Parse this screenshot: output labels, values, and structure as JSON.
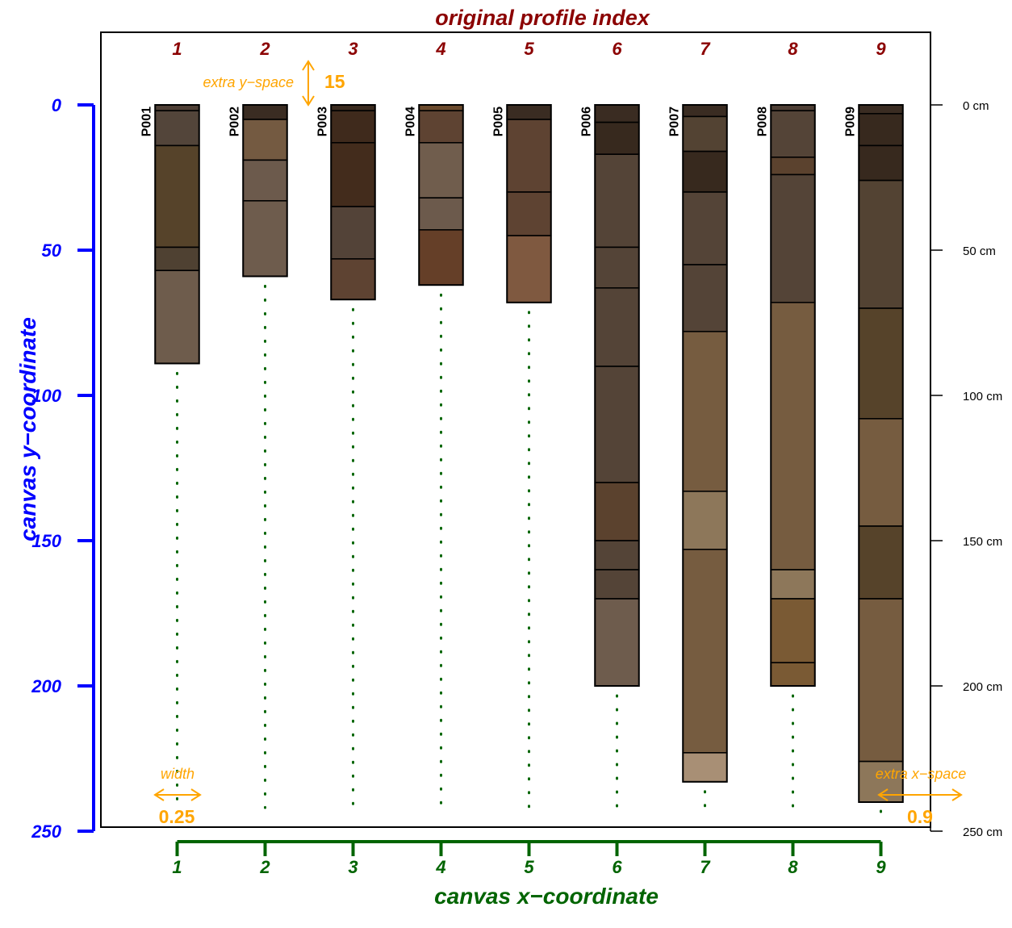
{
  "chart_data": {
    "type": "soil-profile-sketch",
    "title": "original profile index",
    "xlabel": "canvas x−coordinate",
    "ylabel": "canvas y−coordinate",
    "xlim": [
      0.125,
      9.95
    ],
    "ylim": [
      250,
      -25
    ],
    "x_ticks": [
      "1",
      "2",
      "3",
      "4",
      "5",
      "6",
      "7",
      "8",
      "9"
    ],
    "y_ticks": [
      "0",
      "50",
      "100",
      "150",
      "200",
      "250"
    ],
    "depth_axis_ticks": [
      "0 cm",
      "50 cm",
      "100 cm",
      "150 cm",
      "200 cm",
      "250 cm"
    ],
    "depth_axis_values": [
      0,
      50,
      100,
      150,
      200,
      250
    ],
    "index_labels": [
      "1",
      "2",
      "3",
      "4",
      "5",
      "6",
      "7",
      "8",
      "9"
    ],
    "annotations": {
      "y_space_label": "extra y−space",
      "y_space_value": "15",
      "width_label": "width",
      "width_value": "0.25",
      "x_space_label": "extra x−space",
      "x_space_value": "0.9"
    },
    "profile_width": 0.25,
    "extra_y_space": 15,
    "extra_x_space": 0.9,
    "guide_bottom_depth": 240,
    "colors": {
      "title": "#8b0000",
      "y_axis": "#0000ff",
      "x_axis": "#006400",
      "annotation": "#ffa500",
      "guide": "#006400"
    },
    "profiles": [
      {
        "id": "P001",
        "x": 1,
        "horizons": [
          {
            "top": 0,
            "bottom": 2,
            "color": "#4e3f35"
          },
          {
            "top": 2,
            "bottom": 14,
            "color": "#53453a"
          },
          {
            "top": 14,
            "bottom": 49,
            "color": "#56432a"
          },
          {
            "top": 49,
            "bottom": 57,
            "color": "#4f4132"
          },
          {
            "top": 57,
            "bottom": 89,
            "color": "#6e5c4c"
          }
        ]
      },
      {
        "id": "P002",
        "x": 2,
        "horizons": [
          {
            "top": 0,
            "bottom": 5,
            "color": "#3a2c22"
          },
          {
            "top": 5,
            "bottom": 19,
            "color": "#745a41"
          },
          {
            "top": 19,
            "bottom": 33,
            "color": "#6c5a4c"
          },
          {
            "top": 33,
            "bottom": 59,
            "color": "#6e5c4d"
          }
        ]
      },
      {
        "id": "P003",
        "x": 3,
        "horizons": [
          {
            "top": 0,
            "bottom": 2,
            "color": "#3a2a1e"
          },
          {
            "top": 2,
            "bottom": 13,
            "color": "#3f2a1c"
          },
          {
            "top": 13,
            "bottom": 35,
            "color": "#432c1c"
          },
          {
            "top": 35,
            "bottom": 53,
            "color": "#534338"
          },
          {
            "top": 53,
            "bottom": 67,
            "color": "#5e4332"
          }
        ]
      },
      {
        "id": "P004",
        "x": 4,
        "horizons": [
          {
            "top": 0,
            "bottom": 2,
            "color": "#6b4a2d"
          },
          {
            "top": 2,
            "bottom": 13,
            "color": "#5e4332"
          },
          {
            "top": 13,
            "bottom": 32,
            "color": "#705d4d"
          },
          {
            "top": 32,
            "bottom": 43,
            "color": "#6c5a4c"
          },
          {
            "top": 43,
            "bottom": 62,
            "color": "#653f28"
          }
        ]
      },
      {
        "id": "P005",
        "x": 5,
        "horizons": [
          {
            "top": 0,
            "bottom": 5,
            "color": "#3a2c22"
          },
          {
            "top": 5,
            "bottom": 30,
            "color": "#5e4332"
          },
          {
            "top": 30,
            "bottom": 45,
            "color": "#5e4332"
          },
          {
            "top": 45,
            "bottom": 68,
            "color": "#7f5940"
          }
        ]
      },
      {
        "id": "P006",
        "x": 6,
        "horizons": [
          {
            "top": 0,
            "bottom": 6,
            "color": "#3a2c22"
          },
          {
            "top": 6,
            "bottom": 17,
            "color": "#37291e"
          },
          {
            "top": 17,
            "bottom": 49,
            "color": "#544437"
          },
          {
            "top": 49,
            "bottom": 63,
            "color": "#544437"
          },
          {
            "top": 63,
            "bottom": 90,
            "color": "#544437"
          },
          {
            "top": 90,
            "bottom": 130,
            "color": "#544437"
          },
          {
            "top": 130,
            "bottom": 150,
            "color": "#5b422e"
          },
          {
            "top": 150,
            "bottom": 160,
            "color": "#544437"
          },
          {
            "top": 160,
            "bottom": 170,
            "color": "#544437"
          },
          {
            "top": 170,
            "bottom": 200,
            "color": "#6e5c4d"
          }
        ]
      },
      {
        "id": "P007",
        "x": 7,
        "horizons": [
          {
            "top": 0,
            "bottom": 4,
            "color": "#3a2c22"
          },
          {
            "top": 4,
            "bottom": 16,
            "color": "#534333"
          },
          {
            "top": 16,
            "bottom": 30,
            "color": "#37291e"
          },
          {
            "top": 30,
            "bottom": 55,
            "color": "#544437"
          },
          {
            "top": 55,
            "bottom": 78,
            "color": "#544437"
          },
          {
            "top": 78,
            "bottom": 133,
            "color": "#765c40"
          },
          {
            "top": 133,
            "bottom": 153,
            "color": "#8d775a"
          },
          {
            "top": 153,
            "bottom": 223,
            "color": "#765c40"
          },
          {
            "top": 223,
            "bottom": 233,
            "color": "#a88f75"
          }
        ]
      },
      {
        "id": "P008",
        "x": 8,
        "horizons": [
          {
            "top": 0,
            "bottom": 2,
            "color": "#4e3f35"
          },
          {
            "top": 2,
            "bottom": 18,
            "color": "#544437"
          },
          {
            "top": 18,
            "bottom": 24,
            "color": "#5b422e"
          },
          {
            "top": 24,
            "bottom": 68,
            "color": "#544437"
          },
          {
            "top": 68,
            "bottom": 160,
            "color": "#765c40"
          },
          {
            "top": 160,
            "bottom": 170,
            "color": "#8d775a"
          },
          {
            "top": 170,
            "bottom": 192,
            "color": "#7a5a34"
          },
          {
            "top": 192,
            "bottom": 200,
            "color": "#7a5a34"
          }
        ]
      },
      {
        "id": "P009",
        "x": 9,
        "horizons": [
          {
            "top": 0,
            "bottom": 3,
            "color": "#3a2c22"
          },
          {
            "top": 3,
            "bottom": 14,
            "color": "#37291e"
          },
          {
            "top": 14,
            "bottom": 26,
            "color": "#37291e"
          },
          {
            "top": 26,
            "bottom": 70,
            "color": "#534333"
          },
          {
            "top": 70,
            "bottom": 108,
            "color": "#56432a"
          },
          {
            "top": 108,
            "bottom": 145,
            "color": "#765c40"
          },
          {
            "top": 145,
            "bottom": 170,
            "color": "#56432a"
          },
          {
            "top": 170,
            "bottom": 226,
            "color": "#765c40"
          },
          {
            "top": 226,
            "bottom": 240,
            "color": "#8d775a"
          }
        ]
      }
    ]
  }
}
